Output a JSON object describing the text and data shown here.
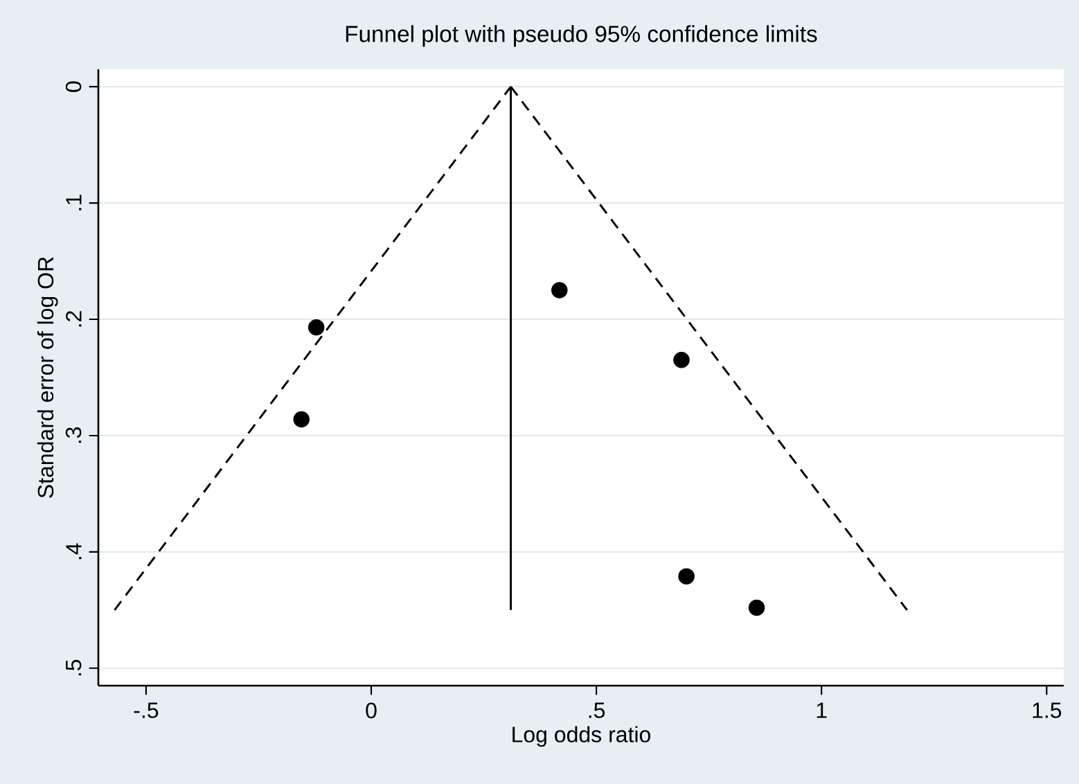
{
  "chart_data": {
    "type": "scatter",
    "title": "Funnel plot with pseudo 95% confidence limits",
    "xlabel": "Log odds ratio",
    "ylabel": "Standard error of log OR",
    "xlim": [
      -0.606,
      1.538
    ],
    "ylim": [
      0.515,
      -0.015
    ],
    "xticks": [
      {
        "value": -0.5,
        "label": "-.5"
      },
      0,
      {
        "value": 0.5,
        "label": ".5"
      },
      1,
      1.5
    ],
    "yticks": [
      0,
      {
        "value": 0.1,
        "label": ".1"
      },
      {
        "value": 0.2,
        "label": ".2"
      },
      {
        "value": 0.3,
        "label": ".3"
      },
      {
        "value": 0.4,
        "label": ".4"
      },
      {
        "value": 0.5,
        "label": ".5"
      }
    ],
    "grid": "y",
    "series": [
      {
        "color": "#000000",
        "marker": "circle",
        "x": [
          -0.122,
          -0.155,
          0.418,
          0.689,
          0.7,
          0.856
        ],
        "values": [
          0.207,
          0.286,
          0.175,
          0.235,
          0.421,
          0.448
        ]
      },
      {
        "type": "line",
        "color": "#000000",
        "marker": "none",
        "line_style": "dashed",
        "x": [
          -0.57,
          0.31
        ],
        "values": [
          0.45,
          0
        ]
      },
      {
        "type": "line",
        "color": "#000000",
        "marker": "none",
        "line_style": "dashed",
        "x": [
          0.31,
          1.19
        ],
        "values": [
          0,
          0.45
        ]
      },
      {
        "type": "line",
        "color": "#000000",
        "marker": "none",
        "line_style": "solid",
        "x": [
          0.31,
          0.31
        ],
        "values": [
          0,
          0.45
        ]
      }
    ]
  }
}
